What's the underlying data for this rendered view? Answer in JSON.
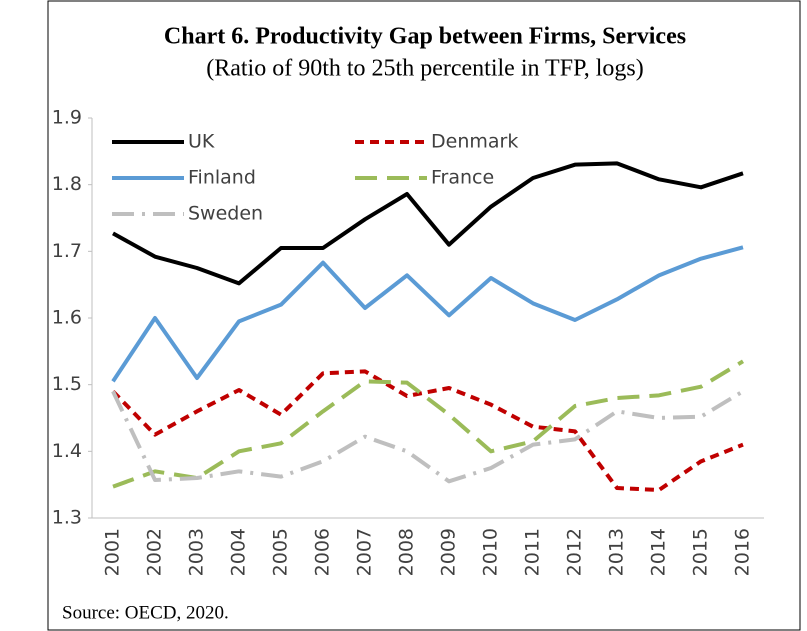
{
  "chart_data": {
    "type": "line",
    "title": "Chart 6. Productivity Gap between Firms, Services",
    "subtitle": "(Ratio of 90th to 25th percentile in TFP, logs)",
    "source": "Source: OECD, 2020.",
    "categories": [
      "2001",
      "2002",
      "2003",
      "2004",
      "2005",
      "2006",
      "2007",
      "2008",
      "2009",
      "2010",
      "2011",
      "2012",
      "2013",
      "2014",
      "2015",
      "2016"
    ],
    "series": [
      {
        "name": "UK",
        "color": "#000000",
        "dash": "solid",
        "values": [
          1.727,
          1.692,
          1.675,
          1.652,
          1.705,
          1.705,
          1.748,
          1.786,
          1.71,
          1.767,
          1.81,
          1.83,
          1.832,
          1.808,
          1.796,
          1.817
        ]
      },
      {
        "name": "Denmark",
        "color": "#c00000",
        "dash": "dashed",
        "values": [
          1.49,
          1.425,
          1.46,
          1.492,
          1.455,
          1.517,
          1.52,
          1.483,
          1.495,
          1.47,
          1.437,
          1.43,
          1.345,
          1.342,
          1.385,
          1.41
        ]
      },
      {
        "name": "Finland",
        "color": "#5b9bd5",
        "dash": "solid",
        "values": [
          1.505,
          1.6,
          1.51,
          1.595,
          1.62,
          1.683,
          1.615,
          1.664,
          1.604,
          1.66,
          1.622,
          1.597,
          1.628,
          1.664,
          1.689,
          1.706
        ]
      },
      {
        "name": "France",
        "color": "#9bbb59",
        "dash": "long-dash",
        "values": [
          1.347,
          1.37,
          1.36,
          1.4,
          1.412,
          1.46,
          1.505,
          1.503,
          1.455,
          1.4,
          1.415,
          1.468,
          1.48,
          1.484,
          1.497,
          1.535
        ]
      },
      {
        "name": "Sweden",
        "color": "#bfbfbf",
        "dash": "dash-dot",
        "values": [
          1.49,
          1.357,
          1.36,
          1.37,
          1.362,
          1.385,
          1.422,
          1.4,
          1.355,
          1.375,
          1.41,
          1.418,
          1.46,
          1.45,
          1.452,
          1.49
        ]
      }
    ],
    "ylim": [
      1.3,
      1.9
    ],
    "yticks": [
      1.3,
      1.4,
      1.5,
      1.6,
      1.7,
      1.8,
      1.9
    ],
    "grid": false,
    "legend": "top-left"
  }
}
